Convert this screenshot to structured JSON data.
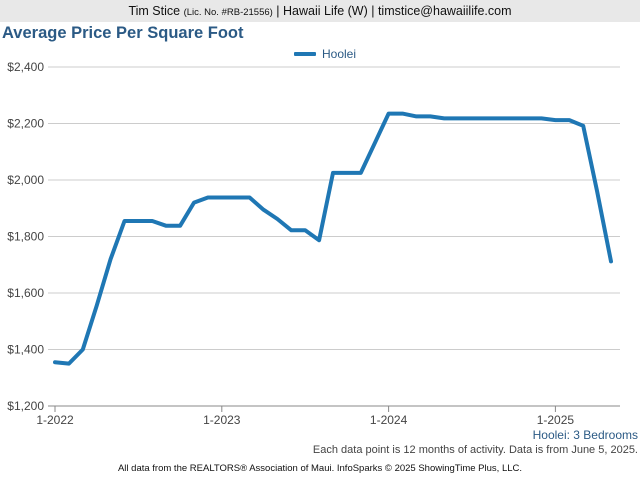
{
  "header": {
    "agent_name": "Tim Stice",
    "license": "(Lic. No. #RB-21556)",
    "rest": "| Hawaii Life (W) | timstice@hawaiilife.com"
  },
  "colors": {
    "series": "#1f77b4",
    "title": "#2b5a85",
    "grid": "#cccccc"
  },
  "chart_data": {
    "type": "line",
    "title": "Average Price Per Square Foot",
    "xlabel": "",
    "ylabel": "",
    "ylim": [
      1200,
      2400
    ],
    "yticks": [
      1200,
      1400,
      1600,
      1800,
      2000,
      2200,
      2400
    ],
    "ytick_labels": [
      "$1,200",
      "$1,400",
      "$1,600",
      "$1,800",
      "$2,000",
      "$2,200",
      "$2,400"
    ],
    "xticks": [
      {
        "label": "1-2022",
        "index": 0
      },
      {
        "label": "1-2023",
        "index": 12
      },
      {
        "label": "1-2024",
        "index": 24
      },
      {
        "label": "1-2025",
        "index": 36
      }
    ],
    "grid": "horizontal",
    "legend_position": "top-center",
    "series": [
      {
        "name": "Hoolei",
        "x": [
          "1-2022",
          "2-2022",
          "3-2022",
          "4-2022",
          "5-2022",
          "6-2022",
          "7-2022",
          "8-2022",
          "9-2022",
          "10-2022",
          "11-2022",
          "12-2022",
          "1-2023",
          "2-2023",
          "3-2023",
          "4-2023",
          "5-2023",
          "6-2023",
          "7-2023",
          "8-2023",
          "9-2023",
          "10-2023",
          "11-2023",
          "12-2023",
          "1-2024",
          "2-2024",
          "3-2024",
          "4-2024",
          "5-2024",
          "6-2024",
          "7-2024",
          "8-2024",
          "9-2024",
          "10-2024",
          "11-2024",
          "12-2024",
          "1-2025",
          "2-2025",
          "3-2025",
          "4-2025",
          "5-2025"
        ],
        "values": [
          1355,
          1350,
          1400,
          1555,
          1720,
          1855,
          1855,
          1855,
          1838,
          1838,
          1920,
          1938,
          1938,
          1938,
          1938,
          1895,
          1862,
          1822,
          1822,
          1787,
          2025,
          2025,
          2025,
          2130,
          2235,
          2235,
          2225,
          2225,
          2218,
          2218,
          2218,
          2218,
          2218,
          2218,
          2218,
          2218,
          2212,
          2212,
          2192,
          1960,
          1712
        ]
      }
    ]
  },
  "notes": {
    "subtitle": "Hoolei: 3 Bedrooms",
    "data_note": "Each data point is 12 months of activity. Data is from June 5, 2025."
  },
  "footer": "All data from the REALTORS® Association of Maui. InfoSparks © 2025 ShowingTime Plus, LLC."
}
